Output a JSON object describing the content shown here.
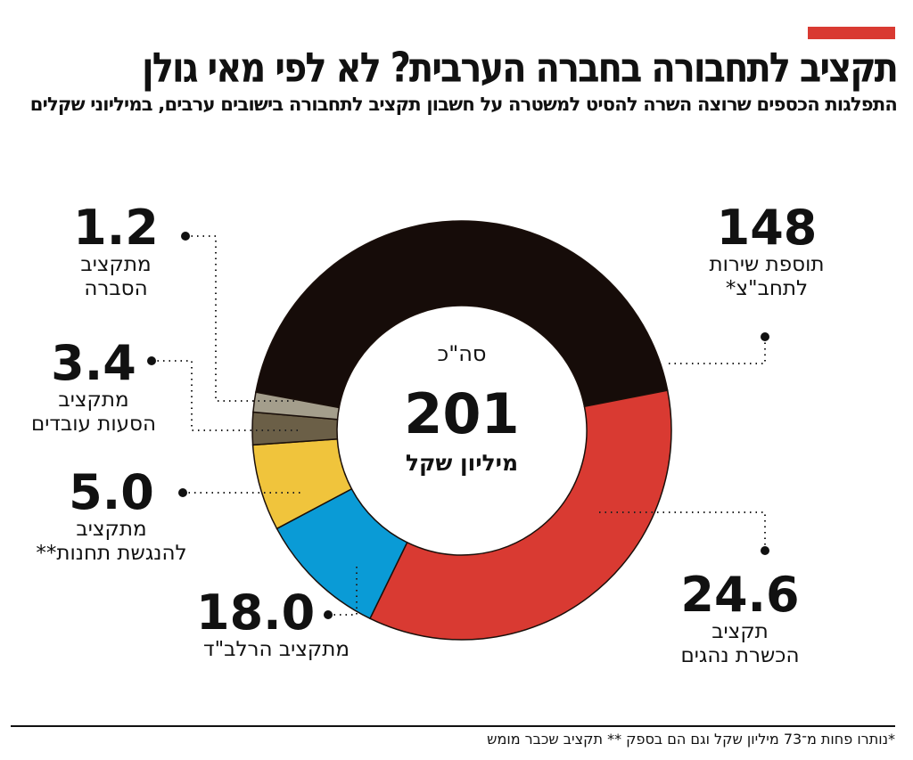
{
  "title": "תקציב לתחבורה בחברה הערבית? לא לפי מאי גולן",
  "subtitle": "התפלגות הכספים שרוצה השרה להסיט למשטרה על חשבון תקציב לתחבורה בישובים ערבים, במיליוני שקלים",
  "accent_color": "#d93a32",
  "center": {
    "label": "סה\"כ",
    "value": "201",
    "unit": "מיליון שקל"
  },
  "footnote": "*נותרו פחות מ־73 מיליון שקל וגם הם בספק ** תקציב שכבר מומש",
  "chart_data": {
    "type": "pie",
    "donut": true,
    "total": 201,
    "unit": "מיליון שקל",
    "slices": [
      {
        "label": "תוספת שירות לתחב\"צ*",
        "value": 148,
        "display": "148",
        "color": "#160c09"
      },
      {
        "label": "תקציב הכשרת נהגים",
        "value": 24.6,
        "display": "24.6",
        "color": "#d93a32"
      },
      {
        "label": "מתקציב הרלב\"ד",
        "value": 18.0,
        "display": "18.0",
        "color": "#0a9bd6"
      },
      {
        "label": "מתקציב להנגשת תחנות**",
        "value": 5.0,
        "display": "5.0",
        "color": "#f0c43c"
      },
      {
        "label": "מתקציב הסעות עובדים",
        "value": 3.4,
        "display": "3.4",
        "color": "#6b5f47"
      },
      {
        "label": "מתקציב הסברה",
        "value": 1.2,
        "display": "1.2",
        "color": "#a49e8c"
      }
    ],
    "labels_text": [
      [
        "תוספת שירות",
        "לתחב\"צ*"
      ],
      [
        "תקציב",
        "הכשרת נהגים"
      ],
      [
        "מתקציב הרלב\"ד"
      ],
      [
        "מתקציב",
        "להנגשת תחנות**"
      ],
      [
        "מתקציב",
        "הסעות עובדים"
      ],
      [
        "מתקציב",
        "הסברה"
      ]
    ]
  }
}
